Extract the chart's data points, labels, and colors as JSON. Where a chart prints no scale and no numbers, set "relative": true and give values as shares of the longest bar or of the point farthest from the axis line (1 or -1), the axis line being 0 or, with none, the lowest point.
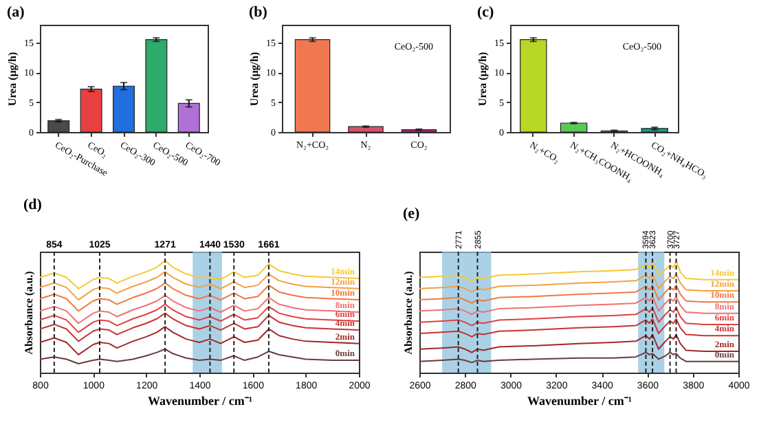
{
  "chart_data": [
    {
      "type": "bar",
      "title": "(a)",
      "ylabel": "Urea (μg/h)",
      "categories": [
        "CeO₂-Purchase",
        "CeO₂",
        "CeO₂-300",
        "CeO₂-500",
        "CeO₂-700"
      ],
      "values": [
        1.9,
        7.2,
        7.7,
        15.5,
        4.8
      ],
      "errors": [
        0.2,
        0.4,
        0.6,
        0.3,
        0.6
      ],
      "colors": [
        "#4a4a4a",
        "#e84040",
        "#1f6fdc",
        "#2eaa6a",
        "#b070d8"
      ],
      "ylim": [
        0,
        18
      ],
      "yticks": [
        0,
        5,
        10,
        15
      ]
    },
    {
      "type": "bar",
      "title": "(b)",
      "ylabel": "Urea (μg/h)",
      "categories": [
        "N₂+CO₂",
        "N₂",
        "CO₂"
      ],
      "values": [
        15.5,
        0.9,
        0.4
      ],
      "errors": [
        0.3,
        0.1,
        0.1
      ],
      "colors": [
        "#f07850",
        "#d8506a",
        "#b02870"
      ],
      "ylim": [
        0,
        18
      ],
      "yticks": [
        0,
        5,
        10,
        15
      ],
      "annotations": [
        "CeO₂-500"
      ]
    },
    {
      "type": "bar",
      "title": "(c)",
      "ylabel": "Urea (μg/h)",
      "categories": [
        "N₂+CO₂",
        "N₂+CH₃COONH₄",
        "N₂+HCOONH₄",
        "CO₂+NH₄HCO₃"
      ],
      "values": [
        15.5,
        1.5,
        0.2,
        0.6
      ],
      "errors": [
        0.3,
        0.1,
        0.1,
        0.2
      ],
      "colors": [
        "#b8d828",
        "#58c858",
        "#20a070",
        "#209880"
      ],
      "ylim": [
        0,
        18
      ],
      "yticks": [
        0,
        5,
        10,
        15
      ],
      "annotations": [
        "CeO₂-500"
      ]
    },
    {
      "type": "line",
      "title": "(d)",
      "xlabel": "Wavenumber / cm⁻¹",
      "ylabel": "Absorbance (a.u.)",
      "relative": true,
      "xlim": [
        800,
        2000
      ],
      "xticks": [
        800,
        1000,
        1200,
        1400,
        1600,
        1800,
        2000
      ],
      "x": [
        800,
        854,
        900,
        945,
        1000,
        1025,
        1060,
        1090,
        1150,
        1200,
        1240,
        1271,
        1300,
        1350,
        1400,
        1440,
        1480,
        1530,
        1570,
        1620,
        1661,
        1700,
        1750,
        1800,
        1900,
        2000
      ],
      "series": [
        {
          "name": "0min",
          "color": "#6b3a3a",
          "values": [
            0.12,
            0.14,
            0.12,
            0.08,
            0.11,
            0.12,
            0.11,
            0.1,
            0.12,
            0.15,
            0.18,
            0.21,
            0.17,
            0.13,
            0.11,
            0.12,
            0.11,
            0.15,
            0.11,
            0.14,
            0.19,
            0.16,
            0.14,
            0.12,
            0.11,
            0.11
          ]
        },
        {
          "name": "2min",
          "color": "#a02828",
          "values": [
            0.27,
            0.31,
            0.27,
            0.16,
            0.25,
            0.27,
            0.26,
            0.22,
            0.28,
            0.32,
            0.36,
            0.41,
            0.36,
            0.3,
            0.27,
            0.3,
            0.26,
            0.32,
            0.27,
            0.29,
            0.39,
            0.33,
            0.3,
            0.28,
            0.27,
            0.26
          ]
        },
        {
          "name": "4min",
          "color": "#c83232",
          "values": [
            0.39,
            0.43,
            0.39,
            0.28,
            0.37,
            0.39,
            0.38,
            0.34,
            0.4,
            0.44,
            0.48,
            0.53,
            0.48,
            0.42,
            0.39,
            0.42,
            0.38,
            0.44,
            0.39,
            0.41,
            0.51,
            0.45,
            0.42,
            0.4,
            0.39,
            0.38
          ]
        },
        {
          "name": "6min",
          "color": "#e04040",
          "values": [
            0.47,
            0.51,
            0.47,
            0.36,
            0.45,
            0.47,
            0.46,
            0.42,
            0.48,
            0.52,
            0.56,
            0.61,
            0.56,
            0.5,
            0.47,
            0.5,
            0.46,
            0.52,
            0.47,
            0.49,
            0.59,
            0.53,
            0.5,
            0.48,
            0.47,
            0.46
          ]
        },
        {
          "name": "8min",
          "color": "#f07070",
          "values": [
            0.55,
            0.59,
            0.55,
            0.44,
            0.53,
            0.55,
            0.54,
            0.5,
            0.56,
            0.6,
            0.64,
            0.69,
            0.64,
            0.58,
            0.55,
            0.58,
            0.54,
            0.6,
            0.55,
            0.57,
            0.67,
            0.61,
            0.58,
            0.56,
            0.55,
            0.54
          ]
        },
        {
          "name": "10min",
          "color": "#f07840",
          "values": [
            0.66,
            0.7,
            0.66,
            0.55,
            0.64,
            0.66,
            0.65,
            0.61,
            0.67,
            0.71,
            0.75,
            0.8,
            0.75,
            0.69,
            0.66,
            0.69,
            0.65,
            0.71,
            0.66,
            0.68,
            0.78,
            0.72,
            0.69,
            0.67,
            0.66,
            0.65
          ]
        },
        {
          "name": "12min",
          "color": "#f5a040",
          "values": [
            0.76,
            0.8,
            0.76,
            0.65,
            0.74,
            0.76,
            0.75,
            0.71,
            0.77,
            0.81,
            0.85,
            0.9,
            0.85,
            0.79,
            0.76,
            0.79,
            0.75,
            0.81,
            0.76,
            0.78,
            0.88,
            0.82,
            0.79,
            0.77,
            0.76,
            0.75
          ]
        },
        {
          "name": "14min",
          "color": "#f8c830",
          "values": [
            0.85,
            0.89,
            0.85,
            0.75,
            0.83,
            0.85,
            0.84,
            0.8,
            0.86,
            0.9,
            0.94,
            1.0,
            0.94,
            0.88,
            0.85,
            0.85,
            0.83,
            0.9,
            0.85,
            0.87,
            0.97,
            0.91,
            0.88,
            0.86,
            0.85,
            0.84
          ]
        }
      ],
      "ref_lines": [
        {
          "axis": "x",
          "value": 854,
          "label": "854",
          "line_style": "dashed"
        },
        {
          "axis": "x",
          "value": 1025,
          "label": "1025",
          "line_style": "dashed"
        },
        {
          "axis": "x",
          "value": 1271,
          "label": "1271",
          "line_style": "dashed"
        },
        {
          "axis": "x",
          "value": 1440,
          "label": "1440",
          "line_style": "dashed"
        },
        {
          "axis": "x",
          "value": 1530,
          "label": "1530",
          "line_style": "dashed"
        },
        {
          "axis": "x",
          "value": 1661,
          "label": "1661",
          "line_style": "dashed"
        }
      ],
      "bands": [
        {
          "axis": "x",
          "from": 1375,
          "to": 1485,
          "color": "#8fc1de"
        }
      ]
    },
    {
      "type": "line",
      "title": "(e)",
      "xlabel": "Wavenumber / cm⁻¹",
      "ylabel": "Absorbance (a.u.)",
      "relative": true,
      "xlim": [
        2600,
        4000
      ],
      "xticks": [
        2600,
        2800,
        3000,
        3200,
        3400,
        3600,
        3800,
        4000
      ],
      "x": [
        2600,
        2700,
        2771,
        2800,
        2830,
        2855,
        2880,
        2950,
        3100,
        3300,
        3450,
        3550,
        3594,
        3610,
        3623,
        3650,
        3680,
        3700,
        3715,
        3727,
        3745,
        3770,
        3850,
        4000
      ],
      "series": [
        {
          "name": "0min",
          "color": "#6b3a3a",
          "values": [
            0.1,
            0.11,
            0.12,
            0.11,
            0.09,
            0.11,
            0.1,
            0.11,
            0.12,
            0.13,
            0.13,
            0.14,
            0.18,
            0.16,
            0.17,
            0.12,
            0.15,
            0.18,
            0.16,
            0.17,
            0.13,
            0.1,
            0.1,
            0.1
          ]
        },
        {
          "name": "2min",
          "color": "#a02828",
          "values": [
            0.21,
            0.22,
            0.23,
            0.21,
            0.18,
            0.21,
            0.2,
            0.23,
            0.24,
            0.26,
            0.27,
            0.28,
            0.33,
            0.3,
            0.34,
            0.21,
            0.28,
            0.32,
            0.3,
            0.34,
            0.26,
            0.2,
            0.19,
            0.19
          ]
        },
        {
          "name": "4min",
          "color": "#c83232",
          "values": [
            0.35,
            0.36,
            0.37,
            0.35,
            0.32,
            0.35,
            0.34,
            0.37,
            0.38,
            0.4,
            0.41,
            0.42,
            0.47,
            0.44,
            0.48,
            0.35,
            0.42,
            0.46,
            0.44,
            0.48,
            0.4,
            0.34,
            0.33,
            0.33
          ]
        },
        {
          "name": "6min",
          "color": "#e04040",
          "values": [
            0.45,
            0.46,
            0.47,
            0.45,
            0.42,
            0.45,
            0.44,
            0.47,
            0.48,
            0.5,
            0.51,
            0.52,
            0.57,
            0.54,
            0.58,
            0.45,
            0.52,
            0.56,
            0.54,
            0.58,
            0.5,
            0.44,
            0.43,
            0.43
          ]
        },
        {
          "name": "8min",
          "color": "#f07070",
          "values": [
            0.55,
            0.56,
            0.57,
            0.55,
            0.52,
            0.55,
            0.54,
            0.57,
            0.58,
            0.6,
            0.61,
            0.62,
            0.67,
            0.64,
            0.68,
            0.55,
            0.62,
            0.66,
            0.64,
            0.68,
            0.6,
            0.54,
            0.53,
            0.53
          ]
        },
        {
          "name": "10min",
          "color": "#f07840",
          "values": [
            0.65,
            0.66,
            0.67,
            0.65,
            0.62,
            0.65,
            0.64,
            0.67,
            0.68,
            0.7,
            0.71,
            0.72,
            0.77,
            0.74,
            0.78,
            0.65,
            0.72,
            0.76,
            0.74,
            0.78,
            0.7,
            0.64,
            0.63,
            0.63
          ]
        },
        {
          "name": "12min",
          "color": "#f5a040",
          "values": [
            0.75,
            0.76,
            0.77,
            0.75,
            0.72,
            0.75,
            0.74,
            0.77,
            0.78,
            0.8,
            0.81,
            0.82,
            0.87,
            0.84,
            0.88,
            0.75,
            0.82,
            0.86,
            0.84,
            0.88,
            0.8,
            0.74,
            0.73,
            0.73
          ]
        },
        {
          "name": "14min",
          "color": "#f8c830",
          "values": [
            0.85,
            0.86,
            0.87,
            0.85,
            0.82,
            0.85,
            0.84,
            0.87,
            0.88,
            0.9,
            0.91,
            0.92,
            0.96,
            0.94,
            0.98,
            0.87,
            0.92,
            0.96,
            0.94,
            1.0,
            0.9,
            0.84,
            0.83,
            0.83
          ]
        }
      ],
      "ref_lines": [
        {
          "axis": "x",
          "value": 2771,
          "label": "2771",
          "line_style": "dashed"
        },
        {
          "axis": "x",
          "value": 2855,
          "label": "2855",
          "line_style": "dashed"
        },
        {
          "axis": "x",
          "value": 3594,
          "label": "3594",
          "line_style": "dashed"
        },
        {
          "axis": "x",
          "value": 3623,
          "label": "3623",
          "line_style": "dashed"
        },
        {
          "axis": "x",
          "value": 3700,
          "label": "3700",
          "line_style": "dashed"
        },
        {
          "axis": "x",
          "value": 3727,
          "label": "3727",
          "line_style": "dashed"
        }
      ],
      "bands": [
        {
          "axis": "x",
          "from": 2700,
          "to": 2915,
          "color": "#8fc1de"
        },
        {
          "axis": "x",
          "from": 3560,
          "to": 3675,
          "color": "#8fc1de"
        }
      ]
    }
  ]
}
